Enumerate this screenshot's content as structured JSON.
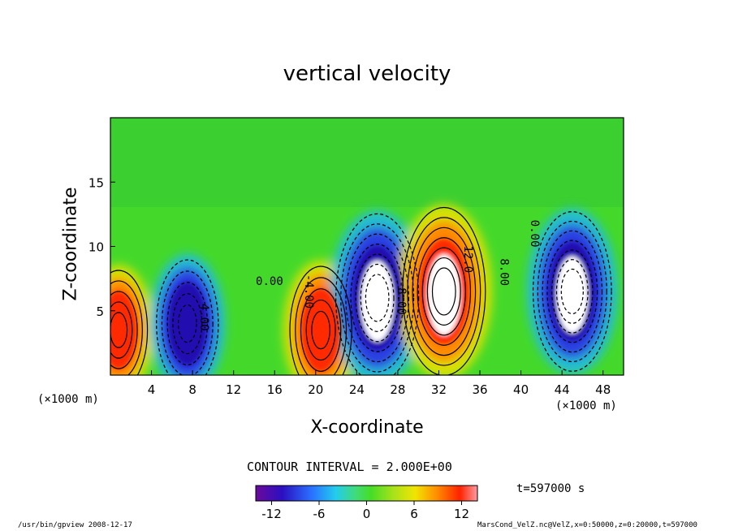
{
  "chart_data": {
    "type": "heatmap",
    "title": "vertical velocity",
    "xlabel": "X-coordinate",
    "ylabel": "Z-coordinate",
    "x_unit": "(×1000 m)",
    "xlim": [
      0,
      50
    ],
    "ylim": [
      0,
      20
    ],
    "x_ticks": [
      "4",
      "8",
      "12",
      "16",
      "20",
      "24",
      "28",
      "32",
      "36",
      "40",
      "44",
      "48"
    ],
    "y_ticks": [
      "5",
      "10",
      "15"
    ],
    "contour_interval_text": "CONTOUR INTERVAL = 2.000E+00",
    "contour_labels": [
      "0.00",
      "4.00",
      "8.00",
      "-4.00",
      "-8.00",
      "12.0"
    ],
    "colorbar": {
      "range": [
        -14,
        14
      ],
      "tick_labels": [
        "-12",
        "-6",
        "0",
        "6",
        "12"
      ]
    },
    "time_label": "t=597000 s",
    "features": [
      {
        "x": 0.8,
        "z": 3.5,
        "w": 9,
        "type": "updraft"
      },
      {
        "x": 7.5,
        "z": 4.0,
        "w": -10,
        "type": "downdraft"
      },
      {
        "x": 20.5,
        "z": 3.5,
        "w": 10,
        "type": "updraft"
      },
      {
        "x": 26.0,
        "z": 6.0,
        "w": -14,
        "type": "downdraft"
      },
      {
        "x": 32.5,
        "z": 6.5,
        "w": 14,
        "type": "updraft"
      },
      {
        "x": 45.0,
        "z": 6.5,
        "w": -13,
        "type": "downdraft"
      }
    ],
    "colors": {
      "negative_max": "#6600aa",
      "negative": "#1a1acc",
      "zero": "#44dd22",
      "positive": "#ff3300",
      "positive_max": "#ff8888",
      "saturated": "#ffffff"
    }
  },
  "footer": {
    "left": "/usr/bin/gpview   2008-12-17",
    "right": "MarsCond_VelZ.nc@VelZ,x=0:50000,z=0:20000,t=597000"
  }
}
